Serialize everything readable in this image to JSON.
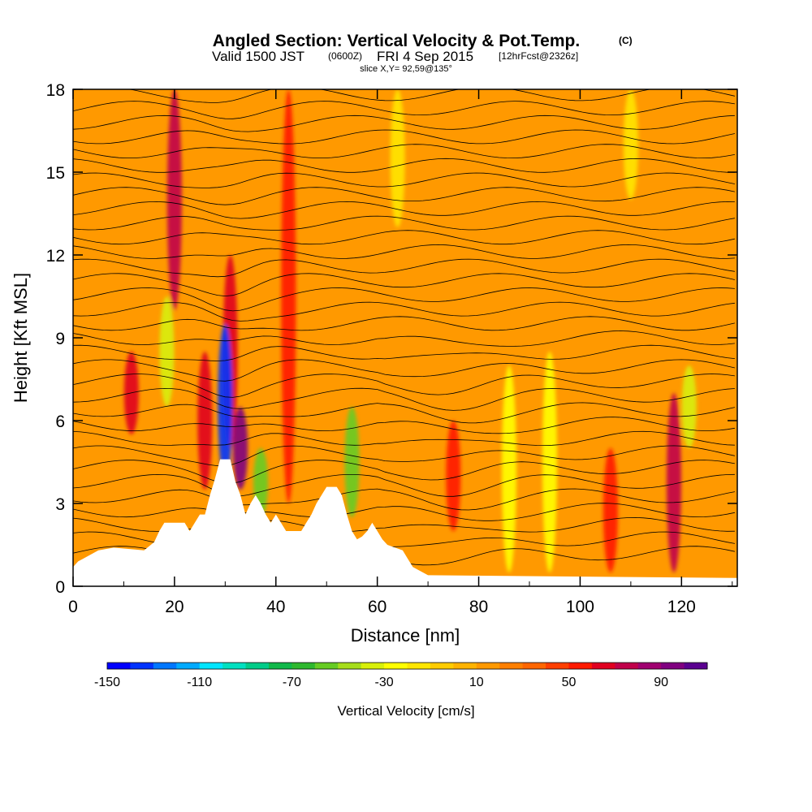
{
  "title": {
    "main": "Angled Section: Vertical Velocity & Pot.Temp.",
    "copyright": "(C)",
    "valid_prefix": "Valid 1500 JST",
    "valid_zulu": "(0600Z)",
    "valid_date": "FRI 4 Sep 2015",
    "forecast": "[12hrFcst@2326z]",
    "slice": "slice X,Y= 92,59@135°"
  },
  "chart_data": {
    "type": "heatmap",
    "xlabel": "Distance [nm]",
    "ylabel": "Height [Kft MSL]",
    "xlim": [
      0,
      131
    ],
    "ylim": [
      0,
      18
    ],
    "x_ticks": [
      0,
      20,
      40,
      60,
      80,
      100,
      120
    ],
    "y_ticks": [
      0,
      3,
      6,
      9,
      12,
      15,
      18
    ],
    "colorbar": {
      "title": "Vertical Velocity [cm/s]",
      "range": [
        -150,
        110
      ],
      "labels": [
        -150,
        -110,
        -70,
        -30,
        10,
        50,
        90
      ],
      "colors": [
        "#0000ff",
        "#0033ff",
        "#0077ff",
        "#00aaff",
        "#00e5ff",
        "#00e0c0",
        "#00cc88",
        "#10b84a",
        "#2eb82e",
        "#66cc22",
        "#a6dd1a",
        "#d8f00a",
        "#ffff00",
        "#ffe600",
        "#ffcc00",
        "#ffb300",
        "#ff9900",
        "#ff7f00",
        "#ff6600",
        "#ff3f00",
        "#ff1a00",
        "#e00020",
        "#c0004a",
        "#a00070",
        "#800080",
        "#5a0090"
      ]
    },
    "background_value_cm_s": 10,
    "velocity_features": [
      {
        "x": 20,
        "y_bottom": 10,
        "y_top": 18,
        "value": 70
      },
      {
        "x": 31,
        "y_bottom": 5,
        "y_top": 12,
        "value": 60
      },
      {
        "x": 30,
        "y_bottom": 3.8,
        "y_top": 9.5,
        "value": -140
      },
      {
        "x": 33,
        "y_bottom": 3.5,
        "y_top": 6.5,
        "value": 90
      },
      {
        "x": 11.5,
        "y_bottom": 5.5,
        "y_top": 8.5,
        "value": 60
      },
      {
        "x": 26,
        "y_bottom": 3.5,
        "y_top": 8.5,
        "value": 60
      },
      {
        "x": 18.5,
        "y_bottom": 6.5,
        "y_top": 10.5,
        "value": -40
      },
      {
        "x": 55,
        "y_bottom": 2.5,
        "y_top": 6.5,
        "value": -60
      },
      {
        "x": 37,
        "y_bottom": 2.5,
        "y_top": 5,
        "value": -60
      },
      {
        "x": 42.5,
        "y_bottom": 3,
        "y_top": 18,
        "value": 50
      },
      {
        "x": 75,
        "y_bottom": 2,
        "y_top": 6,
        "value": 50
      },
      {
        "x": 94,
        "y_bottom": 0.5,
        "y_top": 8.5,
        "value": -30
      },
      {
        "x": 106,
        "y_bottom": 0.5,
        "y_top": 5,
        "value": 50
      },
      {
        "x": 118.5,
        "y_bottom": 0.5,
        "y_top": 7,
        "value": 70
      },
      {
        "x": 121.5,
        "y_bottom": 5,
        "y_top": 8,
        "value": -40
      },
      {
        "x": 86,
        "y_bottom": 0.5,
        "y_top": 8,
        "value": -30
      },
      {
        "x": 64,
        "y_bottom": 13,
        "y_top": 18,
        "value": -20
      },
      {
        "x": 110,
        "y_bottom": 14,
        "y_top": 18,
        "value": -20
      }
    ],
    "terrain_kft": [
      [
        0,
        0.7
      ],
      [
        1,
        0.9
      ],
      [
        2,
        1.0
      ],
      [
        5,
        1.3
      ],
      [
        8,
        1.4
      ],
      [
        14,
        1.3
      ],
      [
        16,
        1.6
      ],
      [
        17,
        2.0
      ],
      [
        18,
        2.3
      ],
      [
        22,
        2.3
      ],
      [
        23,
        2.0
      ],
      [
        24,
        2.3
      ],
      [
        25,
        2.6
      ],
      [
        26,
        2.6
      ],
      [
        27,
        3.3
      ],
      [
        28,
        3.9
      ],
      [
        29,
        4.6
      ],
      [
        31,
        4.6
      ],
      [
        32,
        3.8
      ],
      [
        33,
        3.3
      ],
      [
        34,
        2.6
      ],
      [
        35,
        3.0
      ],
      [
        36,
        3.3
      ],
      [
        37,
        3.0
      ],
      [
        38,
        2.6
      ],
      [
        39,
        2.3
      ],
      [
        40,
        2.6
      ],
      [
        41,
        2.3
      ],
      [
        42,
        2.0
      ],
      [
        45,
        2.0
      ],
      [
        46,
        2.3
      ],
      [
        47,
        2.6
      ],
      [
        48,
        3.0
      ],
      [
        49,
        3.3
      ],
      [
        50,
        3.6
      ],
      [
        52,
        3.6
      ],
      [
        53,
        3.3
      ],
      [
        54,
        2.6
      ],
      [
        55,
        2.0
      ],
      [
        56,
        1.7
      ],
      [
        57,
        1.8
      ],
      [
        58,
        2.0
      ],
      [
        59,
        2.3
      ],
      [
        60,
        2.0
      ],
      [
        61,
        1.7
      ],
      [
        62,
        1.5
      ],
      [
        65,
        1.3
      ],
      [
        66,
        1.0
      ],
      [
        67,
        0.7
      ],
      [
        68,
        0.6
      ],
      [
        70,
        0.4
      ],
      [
        131,
        0.3
      ]
    ]
  }
}
